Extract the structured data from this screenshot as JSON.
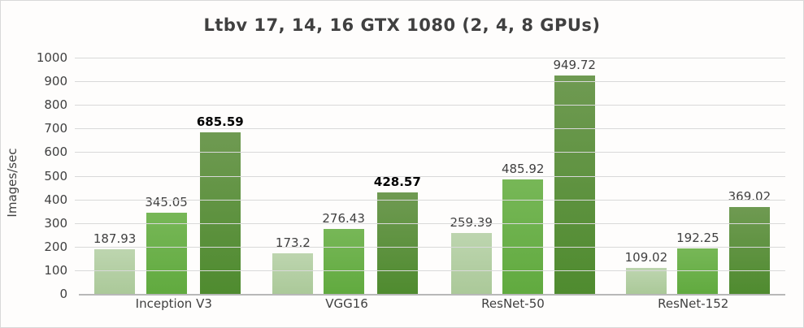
{
  "chart_data": {
    "type": "bar",
    "title": "Ltbv 17, 14, 16 GTX 1080 (2, 4, 8 GPUs)",
    "ylabel": "Images/sec",
    "xlabel": "",
    "ylim": [
      0,
      1000
    ],
    "ytick_step": 100,
    "grid": true,
    "legend_position": "none",
    "categories": [
      "Inception V3",
      "VGG16",
      "ResNet-50",
      "ResNet-152"
    ],
    "series": [
      {
        "name": "2 GPUs",
        "values": [
          187.93,
          173.2,
          259.39,
          109.02
        ],
        "labels": [
          "187.93",
          "173.2",
          "259.39",
          "109.02"
        ],
        "bold": [
          false,
          false,
          false,
          false
        ],
        "color_top": "#bdd5af",
        "color_bottom": "#abc999"
      },
      {
        "name": "4 GPUs",
        "values": [
          345.05,
          276.43,
          485.92,
          192.25
        ],
        "labels": [
          "345.05",
          "276.43",
          "485.92",
          "192.25"
        ],
        "bold": [
          false,
          false,
          false,
          false
        ],
        "color_top": "#77b757",
        "color_bottom": "#61aa3f"
      },
      {
        "name": "8 GPUs",
        "values": [
          685.59,
          428.57,
          949.72,
          369.02
        ],
        "labels": [
          "685.59",
          "428.57",
          "949.72",
          "369.02"
        ],
        "bold": [
          true,
          true,
          false,
          false
        ],
        "color_top": "#6f9a52",
        "color_bottom": "#4f8b2f"
      }
    ]
  },
  "colors": {
    "text": "#404040",
    "bold_label_text": "#000000",
    "gridline": "#d9d9d9",
    "axis_line": "#b8b8b8",
    "frame_border": "#d9d9d9",
    "background": "#fefdfc"
  }
}
